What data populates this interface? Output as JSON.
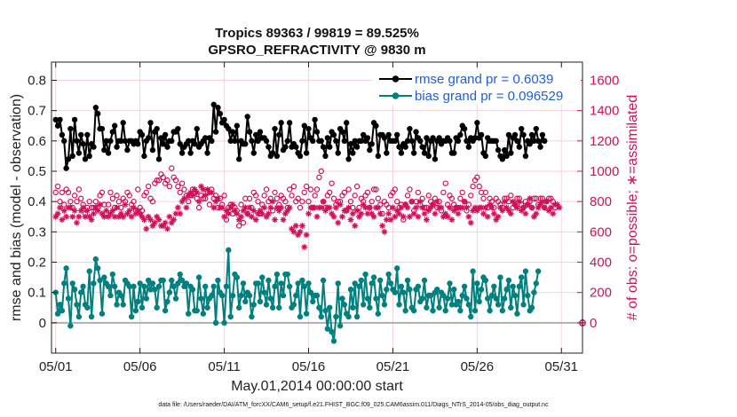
{
  "chart_data": {
    "type": "line",
    "title_line1": "Tropics 89363 / 99819 = 89.525%",
    "title_line2": "GPSRO_REFRACTIVITY @ 9830 m",
    "xlabel": "May.01,2014 00:00:00 start",
    "ylabel_left": "rmse and bias (model - observation)",
    "ylabel_right": "# of obs: o=possible; ∗=assimilated",
    "footnote": "data file: /Users/raeder/DAI/ATM_forcXX/CAM6_setup/f.e21.FHIST_BGC.f09_025.CAM6assim.011/Diags_NTrS_2014-05/obs_diag_output.nc",
    "x_tick_labels": [
      "05/01",
      "05/06",
      "05/11",
      "05/16",
      "05/21",
      "05/26",
      "05/31"
    ],
    "x_tick_values": [
      0,
      5,
      10,
      15,
      20,
      25,
      30
    ],
    "xlim": [
      -0.25,
      31.25
    ],
    "y_left_ticks": [
      "0",
      "0.1",
      "0.2",
      "0.3",
      "0.4",
      "0.5",
      "0.6",
      "0.7",
      "0.8"
    ],
    "y_left_tick_values": [
      0,
      0.1,
      0.2,
      0.3,
      0.4,
      0.5,
      0.6,
      0.7,
      0.8
    ],
    "ylim_left": [
      -0.1,
      0.86
    ],
    "y_right_ticks": [
      "0",
      "200",
      "400",
      "600",
      "800",
      "1000",
      "1200",
      "1400",
      "1600"
    ],
    "y_right_tick_values": [
      0,
      200,
      400,
      600,
      800,
      1000,
      1200,
      1400,
      1600
    ],
    "ylim_right": [
      -200,
      1720
    ],
    "legend": [
      {
        "label": "rmse grand pr = 0.6039",
        "color": "#000000"
      },
      {
        "label": "bias grand pr = 0.096529",
        "color": "#00807f"
      }
    ],
    "grid": true,
    "colors": {
      "rmse": "#000000",
      "bias": "#00807f",
      "obs": "#d1105a",
      "zero_line": "#b0b0b0"
    },
    "series": [
      {
        "name": "rmse",
        "values": [
          0.67,
          0.65,
          0.67,
          0.62,
          0.6,
          0.51,
          0.54,
          0.64,
          0.55,
          0.67,
          0.6,
          0.56,
          0.62,
          0.59,
          0.54,
          0.62,
          0.55,
          0.59,
          0.58,
          0.71,
          0.69,
          0.64,
          0.64,
          0.57,
          0.6,
          0.56,
          0.6,
          0.63,
          0.65,
          0.58,
          0.6,
          0.6,
          0.66,
          0.6,
          0.57,
          0.6,
          0.6,
          0.59,
          0.6,
          0.59,
          0.63,
          0.62,
          0.55,
          0.6,
          0.61,
          0.66,
          0.57,
          0.63,
          0.64,
          0.54,
          0.61,
          0.59,
          0.62,
          0.58,
          0.6,
          0.6,
          0.63,
          0.63,
          0.64,
          0.59,
          0.56,
          0.58,
          0.59,
          0.6,
          0.56,
          0.6,
          0.59,
          0.64,
          0.58,
          0.59,
          0.6,
          0.61,
          0.56,
          0.61,
          0.6,
          0.72,
          0.63,
          0.71,
          0.69,
          0.66,
          0.67,
          0.65,
          0.64,
          0.6,
          0.63,
          0.6,
          0.65,
          0.54,
          0.6,
          0.59,
          0.59,
          0.68,
          0.63,
          0.6,
          0.56,
          0.62,
          0.6,
          0.63,
          0.61,
          0.61,
          0.6,
          0.58,
          0.55,
          0.56,
          0.64,
          0.55,
          0.62,
          0.66,
          0.57,
          0.58,
          0.6,
          0.66,
          0.58,
          0.59,
          0.58,
          0.56,
          0.55,
          0.6,
          0.65,
          0.56,
          0.64,
          0.61,
          0.6,
          0.67,
          0.63,
          0.6,
          0.6,
          0.58,
          0.55,
          0.61,
          0.58,
          0.63,
          0.62,
          0.6,
          0.56,
          0.64,
          0.63,
          0.6,
          0.66,
          0.54,
          0.59,
          0.56,
          0.6,
          0.58,
          0.6,
          0.6,
          0.62,
          0.6,
          0.61,
          0.57,
          0.59,
          0.66,
          0.65,
          0.55,
          0.62,
          0.62,
          0.61,
          0.56,
          0.62,
          0.6,
          0.6,
          0.6,
          0.62,
          0.58,
          0.56,
          0.59,
          0.58,
          0.6,
          0.64,
          0.6,
          0.56,
          0.63,
          0.61,
          0.6,
          0.58,
          0.56,
          0.61,
          0.55,
          0.6,
          0.61,
          0.54,
          0.6,
          0.61,
          0.59,
          0.6,
          0.6,
          0.61,
          0.6,
          0.56,
          0.56,
          0.61,
          0.6,
          0.62,
          0.65,
          0.64,
          0.6,
          0.58,
          0.61,
          0.6,
          0.61,
          0.66,
          0.61,
          0.62,
          0.56,
          0.55,
          0.61,
          0.6,
          0.6,
          0.6,
          0.6,
          0.57,
          0.55,
          0.54,
          0.57,
          0.55,
          0.62,
          0.56,
          0.61,
          0.62,
          0.6,
          0.58,
          0.64,
          0.62,
          0.55,
          0.6,
          0.59,
          0.62,
          0.6,
          0.64,
          0.6,
          0.58,
          0.62,
          0.6
        ]
      },
      {
        "name": "bias",
        "values": [
          0.1,
          0.03,
          0.06,
          0.04,
          0.13,
          0.18,
          0.08,
          -0.01,
          0.13,
          0.11,
          0.06,
          0.02,
          0.1,
          0.12,
          0.06,
          0.05,
          0.17,
          0.02,
          0.13,
          0.21,
          0.18,
          0.14,
          0.03,
          0.15,
          0.13,
          0.12,
          0.09,
          0.16,
          0.12,
          0.06,
          0.1,
          0.09,
          0.06,
          0.14,
          0.13,
          0.12,
          0.02,
          0.12,
          0.04,
          0.07,
          0.13,
          0.05,
          0.12,
          0.08,
          0.14,
          0.11,
          0.13,
          0.11,
          0.05,
          0.12,
          0.14,
          0.14,
          0.04,
          0.07,
          0.1,
          0.14,
          0.12,
          0.08,
          0.13,
          0.16,
          0.14,
          0.12,
          0.13,
          0.03,
          0.12,
          0.11,
          0.04,
          0.04,
          0.15,
          0.08,
          0.03,
          0.12,
          0.05,
          0.08,
          0.09,
          0.12,
          0.0,
          0.14,
          0.1,
          0.09,
          0.0,
          0.12,
          0.24,
          0.02,
          0.09,
          0.16,
          0.15,
          0.05,
          0.09,
          0.13,
          0.07,
          0.1,
          0.09,
          0.02,
          0.06,
          0.13,
          0.13,
          0.07,
          0.15,
          0.1,
          0.06,
          0.14,
          0.08,
          0.05,
          0.12,
          0.16,
          0.05,
          0.13,
          0.09,
          0.16,
          0.16,
          0.12,
          0.05,
          0.06,
          0.09,
          0.13,
          0.02,
          0.14,
          0.12,
          0.03,
          0.13,
          0.1,
          0.07,
          0.09,
          0.09,
          0.05,
          0.02,
          0.14,
          0.04,
          -0.02,
          0.05,
          -0.03,
          -0.06,
          0.02,
          0.13,
          -0.01,
          0.08,
          0.06,
          0.03,
          0.02,
          0.11,
          0.05,
          0.13,
          0.02,
          0.12,
          0.14,
          0.06,
          0.16,
          0.08,
          0.05,
          0.13,
          0.15,
          0.08,
          0.03,
          0.14,
          0.09,
          0.06,
          0.11,
          0.16,
          0.13,
          0.11,
          0.1,
          0.18,
          0.06,
          0.12,
          0.1,
          0.04,
          0.14,
          0.11,
          0.05,
          0.04,
          0.11,
          0.12,
          0.07,
          0.08,
          0.14,
          0.05,
          0.09,
          0.09,
          0.04,
          0.1,
          0.11,
          0.05,
          0.1,
          0.09,
          0.04,
          0.08,
          0.13,
          0.06,
          0.11,
          0.06,
          0.07,
          0.04,
          0.09,
          0.12,
          0.08,
          0.06,
          0.02,
          0.17,
          0.04,
          0.13,
          0.07,
          0.11,
          0.15,
          0.14,
          0.08,
          0.04,
          0.09,
          0.12,
          0.08,
          0.06,
          0.15,
          0.04,
          0.08,
          0.11,
          0.14,
          0.05,
          0.12,
          0.09,
          0.03,
          0.12,
          0.15,
          0.06,
          0.17,
          0.09,
          0.04,
          0.05,
          0.1,
          0.13,
          0.17
        ]
      },
      {
        "name": "possible_obs",
        "marker": "o",
        "values": [
          860,
          900,
          800,
          860,
          780,
          880,
          860,
          800,
          760,
          840,
          800,
          880,
          820,
          780,
          720,
          760,
          800,
          760,
          760,
          800,
          760,
          840,
          860,
          780,
          720,
          780,
          860,
          820,
          760,
          840,
          800,
          760,
          820,
          800,
          860,
          840,
          780,
          800,
          740,
          880,
          760,
          740,
          840,
          860,
          900,
          820,
          800,
          920,
          940,
          940,
          980,
          960,
          920,
          940,
          900,
          1020,
          960,
          940,
          900,
          860,
          920,
          880,
          840,
          800,
          840,
          880,
          860,
          820,
          760,
          840,
          820,
          820,
          860,
          780,
          880,
          820,
          840,
          760,
          820,
          780,
          840,
          680,
          760,
          780,
          720,
          760,
          740,
          640,
          780,
          660,
          820,
          720,
          820,
          760,
          860,
          840,
          800,
          720,
          780,
          840,
          880,
          800,
          820,
          740,
          860,
          820,
          780,
          840,
          820,
          800,
          760,
          880,
          840,
          900,
          800,
          820,
          760,
          800,
          860,
          900,
          800,
          880,
          760,
          840,
          880,
          960,
          1000,
          800,
          760,
          840,
          860,
          920,
          820,
          780,
          800,
          800,
          840,
          860,
          740,
          880,
          800,
          760,
          840,
          900,
          760,
          820,
          800,
          840,
          860,
          760,
          800,
          880,
          880,
          820,
          780,
          720,
          800,
          780,
          760,
          840,
          860,
          880,
          800,
          760,
          780,
          680,
          780,
          840,
          880,
          800,
          740,
          800,
          860,
          780,
          820,
          760,
          760,
          840,
          800,
          780,
          820,
          760,
          800,
          740,
          860,
          920,
          780,
          840,
          820,
          780,
          760,
          760,
          820,
          860,
          800,
          740,
          780,
          840,
          900,
          940,
          960,
          900,
          860,
          820,
          860,
          760,
          820,
          800,
          760,
          820,
          800,
          780,
          760,
          820,
          820,
          800,
          840,
          760,
          780,
          820,
          820,
          780,
          760,
          800,
          780,
          800,
          760,
          820,
          820,
          780,
          820,
          820,
          760,
          800,
          820,
          820,
          800,
          760
        ]
      },
      {
        "name": "assimilated_obs",
        "marker": "*",
        "values": [
          700,
          720,
          760,
          680,
          740,
          700,
          760,
          760,
          700,
          740,
          660,
          700,
          740,
          760,
          700,
          740,
          700,
          680,
          720,
          760,
          740,
          780,
          720,
          700,
          740,
          700,
          720,
          740,
          700,
          760,
          700,
          720,
          700,
          780,
          720,
          740,
          700,
          760,
          720,
          740,
          720,
          700,
          680,
          620,
          700,
          680,
          640,
          660,
          700,
          680,
          640,
          640,
          660,
          620,
          700,
          660,
          680,
          720,
          760,
          720,
          800,
          820,
          760,
          840,
          860,
          840,
          880,
          860,
          800,
          900,
          880,
          840,
          880,
          860,
          860,
          760,
          800,
          820,
          760,
          760,
          700,
          740,
          720,
          760,
          780,
          740,
          720,
          680,
          700,
          740,
          760,
          720,
          760,
          700,
          740,
          680,
          720,
          740,
          720,
          760,
          700,
          720,
          760,
          800,
          680,
          760,
          740,
          760,
          680,
          720,
          740,
          760,
          620,
          600,
          640,
          580,
          600,
          640,
          500,
          580,
          720,
          760,
          760,
          760,
          700,
          760,
          760,
          800,
          740,
          760,
          760,
          720,
          700,
          760,
          660,
          780,
          700,
          740,
          740,
          760,
          680,
          720,
          640,
          740,
          700,
          720,
          780,
          760,
          720,
          760,
          720,
          700,
          760,
          760,
          720,
          640,
          600,
          680,
          720,
          680,
          760,
          700,
          740,
          720,
          760,
          700,
          780,
          760,
          700,
          800,
          720,
          760,
          700,
          800,
          760,
          720,
          680,
          740,
          760,
          780,
          720,
          800,
          760,
          760,
          700,
          720,
          700,
          760,
          680,
          740,
          760,
          720,
          760,
          760,
          800,
          760,
          700,
          660,
          740,
          760,
          740,
          760,
          760,
          720,
          760,
          700,
          780,
          760,
          720,
          680,
          700,
          760,
          740,
          800,
          760,
          740,
          720,
          800,
          780,
          760,
          800,
          740,
          760,
          720,
          780,
          820,
          760,
          700,
          720,
          760,
          780,
          800,
          760,
          800,
          740,
          760,
          720,
          780,
          780,
          760
        ]
      }
    ],
    "final_point": {
      "x": 31.25,
      "possible_obs": 0,
      "assimilated_obs": 0
    }
  }
}
